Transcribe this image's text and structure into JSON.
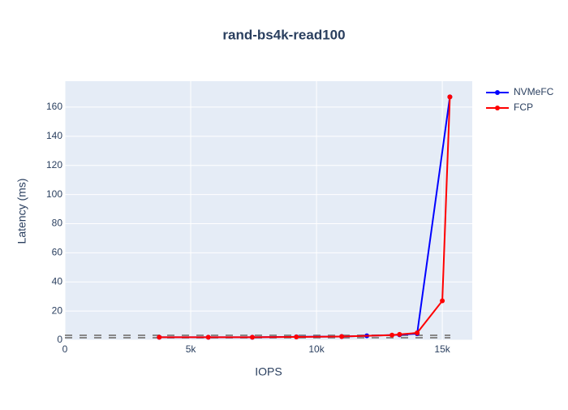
{
  "chart_data": {
    "type": "line",
    "title": "rand-bs4k-read100",
    "x_label": "IOPS",
    "y_label": "Latency (ms)",
    "series": [
      {
        "name": "NVMeFC",
        "color": "#0000ff",
        "x": [
          3750,
          5700,
          7450,
          9200,
          11000,
          12000,
          13300,
          14000,
          15300
        ],
        "values": [
          2,
          2,
          2,
          2.3,
          2.5,
          3,
          3.7,
          4.5,
          167
        ]
      },
      {
        "name": "FCP",
        "color": "#ff0000",
        "x": [
          3750,
          5700,
          7450,
          9200,
          11000,
          13000,
          13300,
          14000,
          15000,
          15300
        ],
        "values": [
          2,
          2,
          2,
          2.2,
          2.5,
          3.5,
          4,
          5,
          27,
          167
        ]
      }
    ],
    "xlim": [
      0,
      16190
    ],
    "ylim": [
      0,
      177.8
    ],
    "xticks": [
      0,
      {
        "value": 5000,
        "label": "5k"
      },
      {
        "value": 10000,
        "label": "10k"
      },
      {
        "value": 15000,
        "label": "15k"
      }
    ],
    "yticks": [
      0,
      20,
      40,
      60,
      80,
      100,
      120,
      140,
      160
    ],
    "grid": true,
    "legend": "outside-right"
  }
}
